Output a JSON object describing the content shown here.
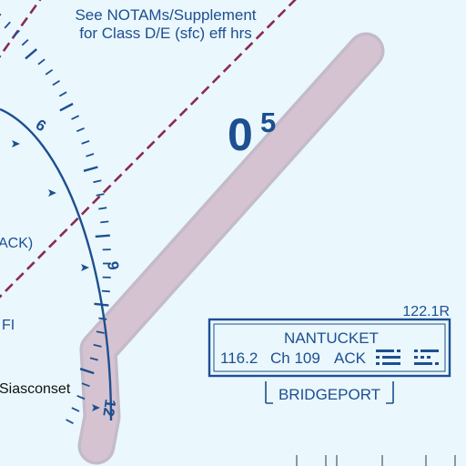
{
  "colors": {
    "background": "#eaf7fc",
    "chart_blue": "#1d4f91",
    "airspace_magenta": "#8a2a55",
    "route_band": "#d6c3d1",
    "text_black": "#111111"
  },
  "notam_note": {
    "line1": "See NOTAMs/Supplement",
    "line2": "for Class D/E (sfc) eff hrs"
  },
  "maximum_elevation_figure": {
    "thousands": "0",
    "hundreds": "5"
  },
  "compass_rose": {
    "labels": [
      "6",
      "9",
      "12"
    ]
  },
  "partial_labels": {
    "vor_ident_fragment": "ACK)",
    "frequency_fragment": "FI"
  },
  "town_label": "Siasconset",
  "navaid_box": {
    "frequency_top": "122.1R",
    "name": "NANTUCKET",
    "vor_frequency": "116.2",
    "channel": "Ch 109",
    "ident": "ACK",
    "fss_name": "BRIDGEPORT",
    "morse_icon": "morse-code-icon"
  }
}
